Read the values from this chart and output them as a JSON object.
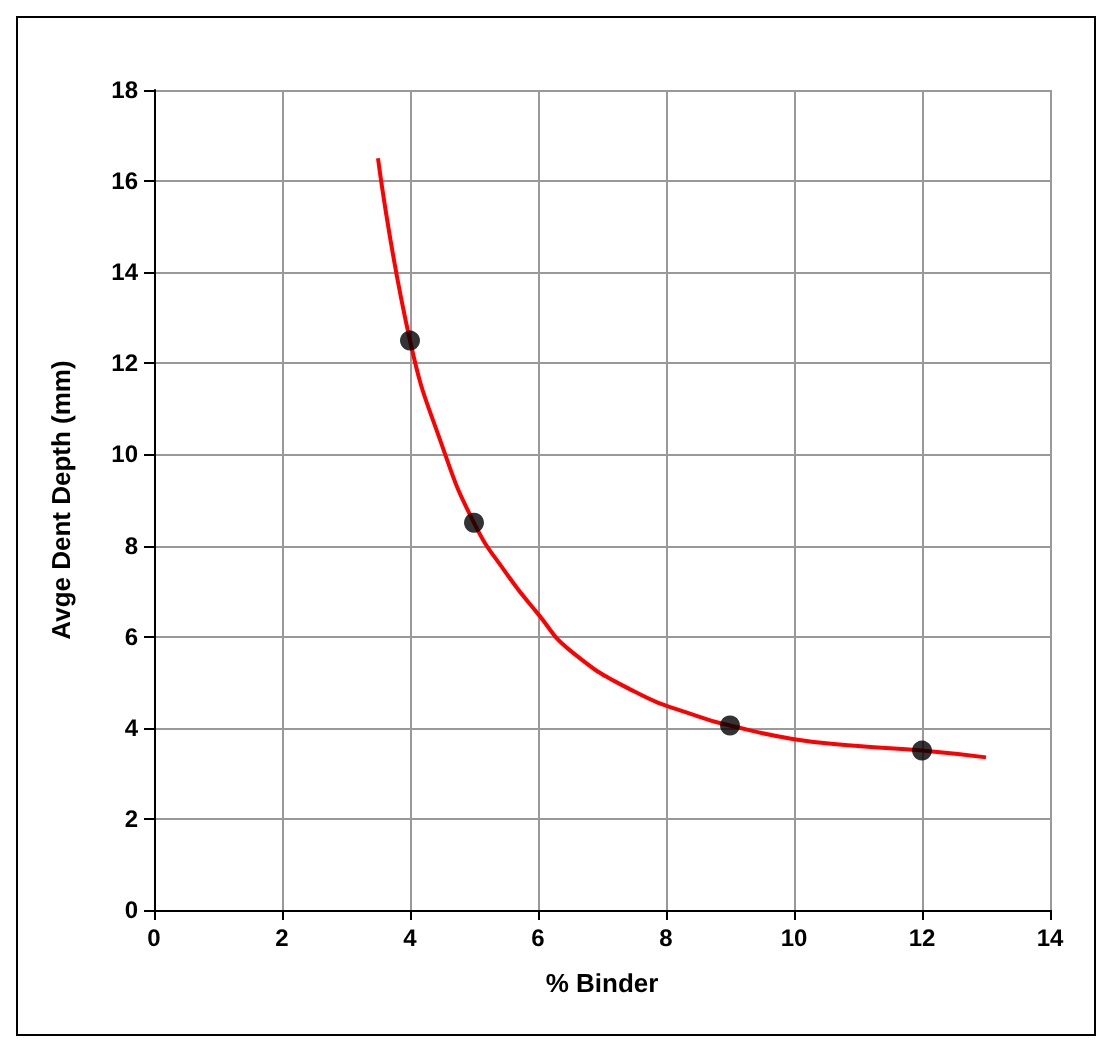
{
  "chart_data": {
    "type": "scatter",
    "xlabel": "% Binder",
    "ylabel": "Avge Dent Depth (mm)",
    "xlim": [
      0,
      14
    ],
    "xticks": [
      0,
      2,
      4,
      6,
      8,
      10,
      12,
      14
    ],
    "ylim": [
      0,
      18
    ],
    "yticks": [
      0,
      2,
      4,
      6,
      8,
      10,
      12,
      14,
      16,
      18
    ],
    "grid": true,
    "series": [
      {
        "type": "line",
        "color": "#ff0000",
        "marker": "none",
        "line_style": "solid",
        "x": [
          3.5,
          4,
          4.5,
          5,
          5.5,
          6,
          6.5,
          7.5,
          8.5,
          9,
          10,
          11,
          12,
          13
        ],
        "values": [
          16.5,
          12.5,
          10.2,
          8.5,
          7.4,
          6.5,
          5.7,
          4.8,
          4.25,
          4.05,
          3.75,
          3.6,
          3.5,
          3.35
        ]
      },
      {
        "color": "#000000",
        "marker": "circle",
        "x": [
          4,
          5,
          9,
          12
        ],
        "values": [
          12.5,
          8.5,
          4.05,
          3.5
        ]
      }
    ]
  }
}
